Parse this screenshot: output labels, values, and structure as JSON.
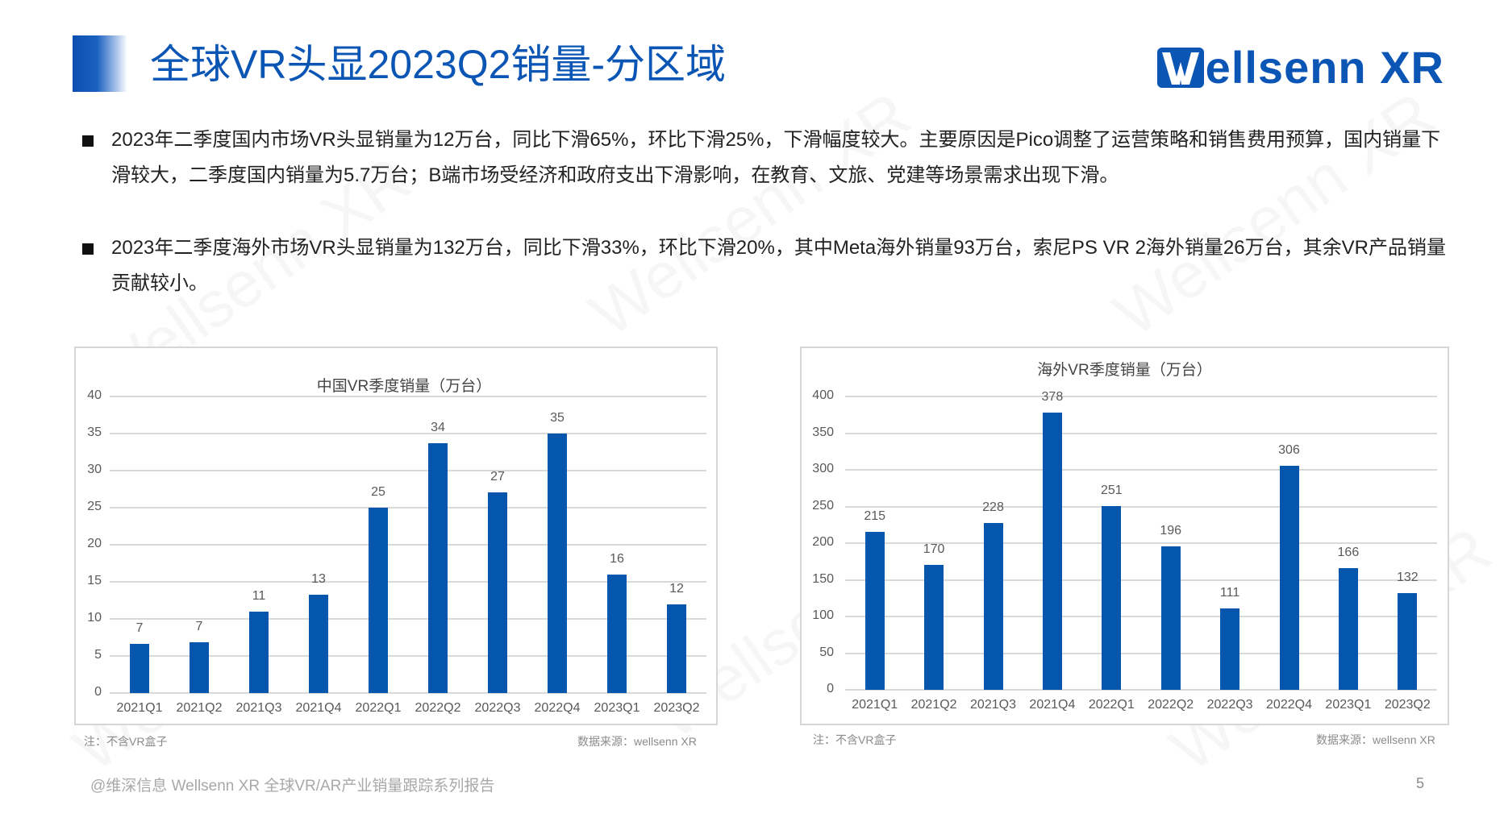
{
  "header": {
    "title": "全球VR头显2023Q2销量-分区域",
    "logo_text": "ellsenn XR",
    "logo_full": "Wellsenn XR",
    "accent_color": "#0b55b5"
  },
  "bullets": [
    {
      "text": "2023年二季度国内市场VR头显销量为12万台，同比下滑65%，环比下滑25%，下滑幅度较大。主要原因是Pico调整了运营策略和销售费用预算，国内销量下滑较大，二季度国内销量为5.7万台；B端市场受经济和政府支出下滑影响，在教育、文旅、党建等场景需求出现下滑。"
    },
    {
      "text": "2023年二季度海外市场VR头显销量为132万台，同比下滑33%，环比下滑20%，其中Meta海外销量93万台，索尼PS VR 2海外销量26万台，其余VR产品销量贡献较小。"
    }
  ],
  "chart_data": [
    {
      "type": "bar",
      "title": "中国VR季度销量（万台）",
      "categories": [
        "2021Q1",
        "2021Q2",
        "2021Q3",
        "2021Q4",
        "2022Q1",
        "2022Q2",
        "2022Q3",
        "2022Q4",
        "2023Q1",
        "2023Q2"
      ],
      "values": [
        7,
        7,
        11,
        13,
        25,
        34,
        27,
        35,
        16,
        12
      ],
      "bar_heights_approx": [
        6.6,
        6.9,
        11,
        13.3,
        25,
        33.7,
        27.1,
        35,
        16,
        12
      ],
      "xlabel": "",
      "ylabel": "",
      "ylim": [
        0,
        40
      ],
      "yticks": [
        0,
        5,
        10,
        15,
        20,
        25,
        30,
        35,
        40
      ],
      "grid": true,
      "legend": "none",
      "bar_color": "#0557ad",
      "note": "注：不含VR盒子",
      "source": "数据来源：wellsenn XR"
    },
    {
      "type": "bar",
      "title": "海外VR季度销量（万台）",
      "categories": [
        "2021Q1",
        "2021Q2",
        "2021Q3",
        "2021Q4",
        "2022Q1",
        "2022Q2",
        "2022Q3",
        "2022Q4",
        "2023Q1",
        "2023Q2"
      ],
      "values": [
        215,
        170,
        228,
        378,
        251,
        196,
        111,
        306,
        166,
        132
      ],
      "xlabel": "",
      "ylabel": "",
      "ylim": [
        0,
        400
      ],
      "yticks": [
        0,
        50,
        100,
        150,
        200,
        250,
        300,
        350,
        400
      ],
      "grid": true,
      "legend": "none",
      "bar_color": "#0557ad",
      "note": "注：不含VR盒子",
      "source": "数据来源：wellsenn XR"
    }
  ],
  "footer": {
    "text": "@维深信息 Wellsenn XR 全球VR/AR产业销量跟踪系列报告",
    "page_number": "5"
  }
}
